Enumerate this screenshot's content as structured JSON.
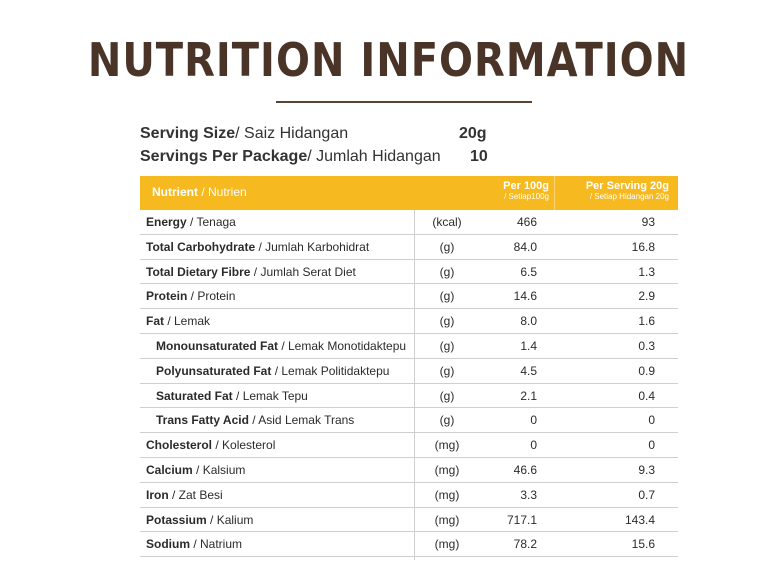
{
  "title": "NUTRITION INFORMATION",
  "serving": {
    "size_label_bold": "Serving Size",
    "size_label": "/ Saiz Hidangan",
    "size_value": "20g",
    "per_package_label_bold": "Servings Per Package",
    "per_package_label": "/ Jumlah Hidangan",
    "per_package_value": "10"
  },
  "header": {
    "nutrient_bold": "Nutrient",
    "nutrient": " / Nutrien",
    "per100_main": "Per 100g",
    "per100_sub": "/ Setiap100g",
    "perserving_main": "Per Serving 20g",
    "perserving_sub": "/ Setiap Hidangan 20g"
  },
  "rows": [
    {
      "bold": "Energy",
      "rest": " / Tenaga",
      "unit": "(kcal)",
      "per100": "466",
      "serving": "93"
    },
    {
      "bold": "Total Carbohydrate",
      "rest": " / Jumlah Karbohidrat",
      "unit": "(g)",
      "per100": "84.0",
      "serving": "16.8"
    },
    {
      "bold": "Total Dietary Fibre",
      "rest": " / Jumlah Serat Diet",
      "unit": "(g)",
      "per100": "6.5",
      "serving": "1.3"
    },
    {
      "bold": "Protein",
      "rest": " / Protein",
      "unit": "(g)",
      "per100": "14.6",
      "serving": "2.9"
    },
    {
      "bold": "Fat",
      "rest": " / Lemak",
      "unit": "(g)",
      "per100": "8.0",
      "serving": "1.6"
    },
    {
      "bold": "Monounsaturated Fat",
      "rest": " / Lemak Monotidaktepu",
      "unit": "(g)",
      "per100": "1.4",
      "serving": "0.3"
    },
    {
      "bold": "Polyunsaturated Fat",
      "rest": " / Lemak Politidaktepu",
      "unit": "(g)",
      "per100": "4.5",
      "serving": "0.9"
    },
    {
      "bold": "Saturated Fat",
      "rest": " / Lemak Tepu",
      "unit": "(g)",
      "per100": "2.1",
      "serving": "0.4"
    },
    {
      "bold": "Trans Fatty Acid",
      "rest": " / Asid Lemak Trans",
      "unit": "(g)",
      "per100": "0",
      "serving": "0"
    },
    {
      "bold": "Cholesterol",
      "rest": " / Kolesterol",
      "unit": "(mg)",
      "per100": "0",
      "serving": "0"
    },
    {
      "bold": "Calcium",
      "rest": " / Kalsium",
      "unit": "(mg)",
      "per100": "46.6",
      "serving": "9.3"
    },
    {
      "bold": "Iron",
      "rest": " / Zat Besi",
      "unit": "(mg)",
      "per100": "3.3",
      "serving": "0.7"
    },
    {
      "bold": "Potassium",
      "rest": " / Kalium",
      "unit": "(mg)",
      "per100": "717.1",
      "serving": "143.4"
    },
    {
      "bold": "Sodium",
      "rest": " / Natrium",
      "unit": "(mg)",
      "per100": "78.2",
      "serving": "15.6"
    }
  ]
}
